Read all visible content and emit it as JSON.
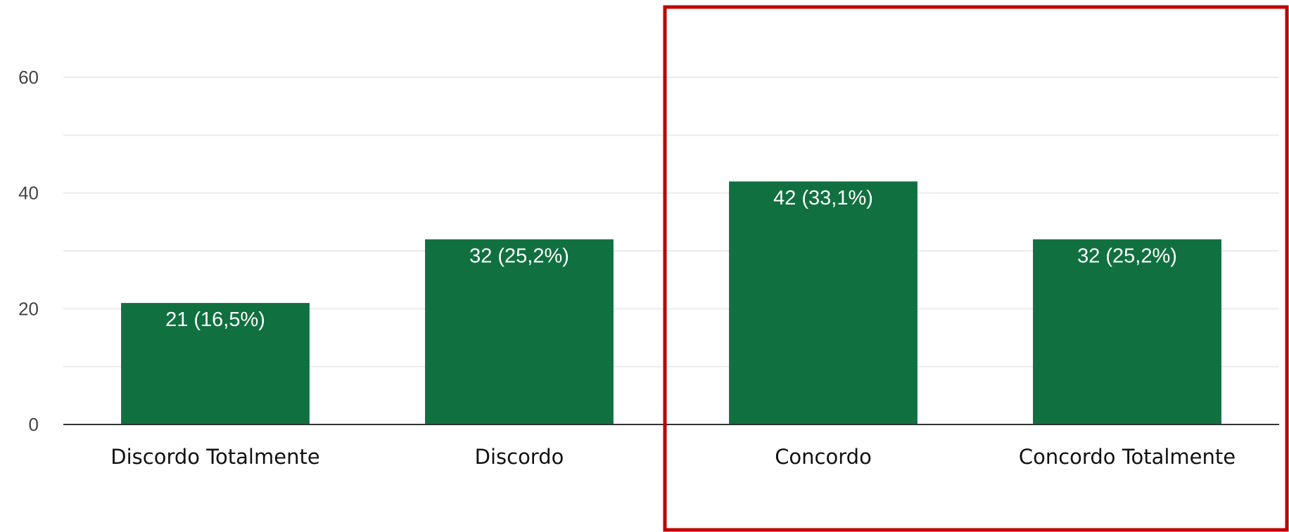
{
  "chart_data": {
    "type": "bar",
    "categories": [
      "Discordo Totalmente",
      "Discordo",
      "Concordo",
      "Concordo Totalmente"
    ],
    "values": [
      21,
      32,
      42,
      32
    ],
    "data_labels": [
      "21 (16,5%)",
      "32 (25,2%)",
      "42 (33,1%)",
      "32 (25,2%)"
    ],
    "yticks": [
      "0",
      "20",
      "40",
      "60"
    ],
    "ylim": [
      0,
      60
    ],
    "grid": true,
    "legend": "none",
    "colors": {
      "bar": "#107040",
      "grid": "#ebebeb",
      "axis": "#333333",
      "highlight": "#c00000"
    },
    "highlight": {
      "categories": [
        "Concordo",
        "Concordo Totalmente"
      ],
      "style": "red-outline"
    }
  }
}
